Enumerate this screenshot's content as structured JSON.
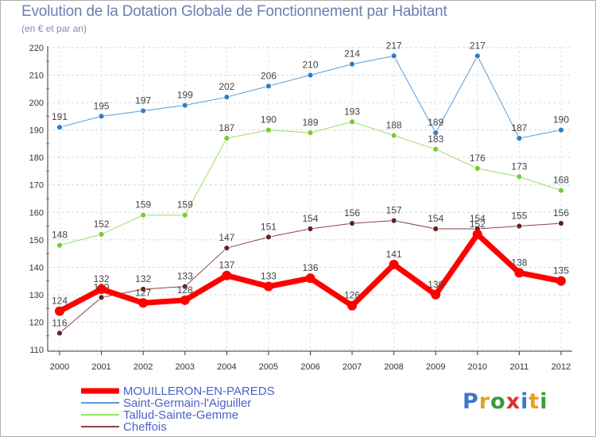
{
  "header": {
    "title": "Evolution de la Dotation Globale de Fonctionnement par Habitant",
    "subtitle": "(en € et par an)"
  },
  "logo": {
    "letters": [
      "P",
      "r",
      "o",
      "x",
      "i",
      "t",
      "i"
    ],
    "colors": [
      "#3a78c8",
      "#e8a020",
      "#3a9a3a",
      "#e03030",
      "#3a78c8",
      "#e8a020",
      "#3a9a3a"
    ]
  },
  "chart_data": {
    "type": "line",
    "title": "Evolution de la Dotation Globale de Fonctionnement par Habitant",
    "subtitle": "(en € et par an)",
    "xlabel": "",
    "ylabel": "",
    "ylim": [
      110,
      220
    ],
    "yticks": [
      110,
      120,
      130,
      140,
      150,
      160,
      170,
      180,
      190,
      200,
      210,
      220
    ],
    "categories": [
      "2000",
      "2001",
      "2002",
      "2003",
      "2004",
      "2005",
      "2006",
      "2007",
      "2008",
      "2009",
      "2010",
      "2011",
      "2012"
    ],
    "grid": true,
    "legend_position": "bottom-left",
    "series": [
      {
        "name": "Saint-Germain-l'Aiguiller",
        "color": "#5b9bd5",
        "marker": "#2f7fc4",
        "width": 1,
        "values": [
          191,
          195,
          197,
          199,
          202,
          206,
          210,
          214,
          217,
          189,
          217,
          187,
          190
        ]
      },
      {
        "name": "Tallud-Sainte-Gemme",
        "color": "#99dd66",
        "marker": "#77cc33",
        "width": 1,
        "values": [
          148,
          152,
          159,
          159,
          187,
          190,
          189,
          193,
          188,
          183,
          176,
          173,
          168
        ]
      },
      {
        "name": "Cheffois",
        "color": "#884444",
        "marker": "#662222",
        "width": 1,
        "values": [
          116,
          129,
          132,
          133,
          147,
          151,
          154,
          156,
          157,
          154,
          154,
          155,
          156
        ]
      },
      {
        "name": "MOUILLERON-EN-PAREDS",
        "color": "#ff0000",
        "marker": "#ff0000",
        "width": 7,
        "values": [
          124,
          132,
          127,
          128,
          137,
          133,
          136,
          126,
          141,
          130,
          152,
          138,
          135
        ]
      }
    ],
    "legend_order": [
      "MOUILLERON-EN-PAREDS",
      "Saint-Germain-l'Aiguiller",
      "Tallud-Sainte-Gemme",
      "Cheffois"
    ],
    "legend_text_color": "#4a62c8"
  }
}
